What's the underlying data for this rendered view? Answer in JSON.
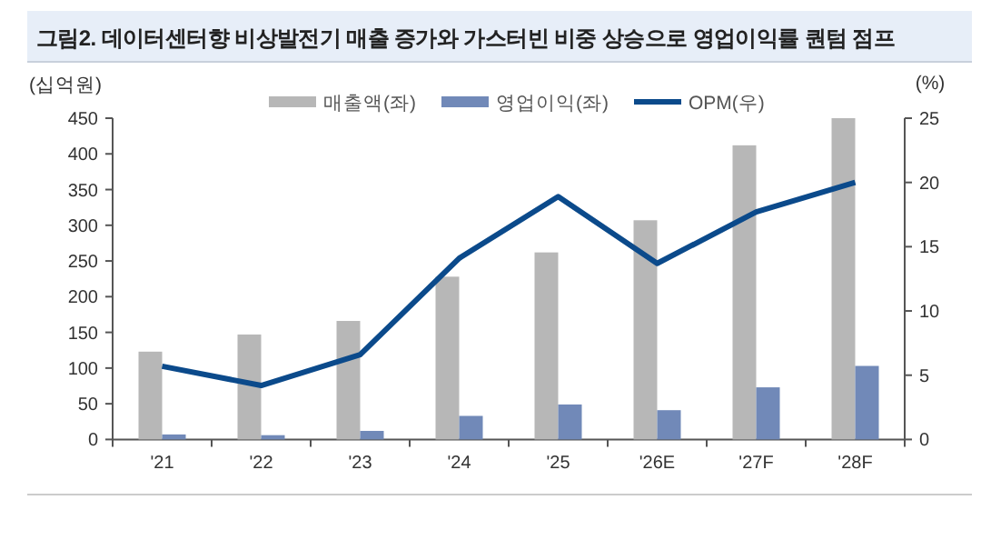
{
  "chart_data": {
    "type": "bar",
    "title": "그림2. 데이터센터향 비상발전기 매출 증가와 가스터빈 비중 상승으로 영업이익률 퀀텀 점프",
    "ylabel": "(십억원)",
    "y2label": "(%)",
    "categories": [
      "'21",
      "'22",
      "'23",
      "'24",
      "'25",
      "'26E",
      "'27F",
      "'28F"
    ],
    "series": [
      {
        "name": "매출액(좌)",
        "color": "#b7b7b7",
        "values": [
          123,
          147,
          166,
          228,
          262,
          307,
          412,
          450
        ]
      },
      {
        "name": "영업이익(좌)",
        "color": "#7189b8",
        "values": [
          7,
          6,
          12,
          33,
          49,
          41,
          73,
          103
        ]
      },
      {
        "name": "OPM(우)",
        "type": "line",
        "axis": "y2",
        "color": "#0b4a8b",
        "values": [
          5.7,
          4.2,
          6.6,
          14.1,
          18.9,
          13.7,
          17.7,
          20.0
        ]
      }
    ],
    "ylim": [
      0,
      450
    ],
    "yticks": [
      0,
      50,
      100,
      150,
      200,
      250,
      300,
      350,
      400,
      450
    ],
    "y2lim": [
      0,
      25
    ],
    "y2ticks": [
      0,
      5,
      10,
      15,
      20,
      25
    ],
    "grid": false,
    "legend": "top",
    "marker": "none",
    "line_style": "solid"
  }
}
